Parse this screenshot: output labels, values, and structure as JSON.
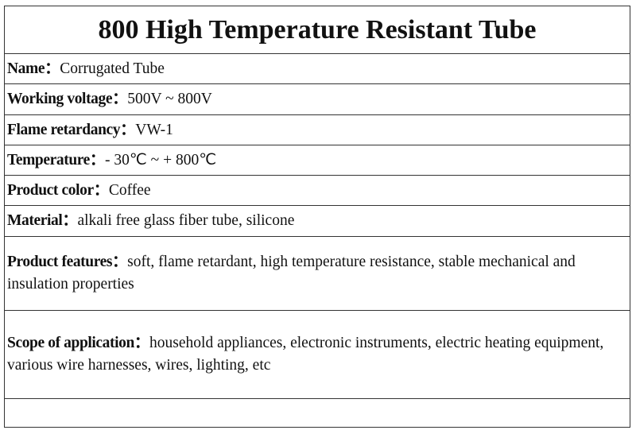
{
  "title": "800 High Temperature Resistant Tube",
  "rows": [
    {
      "label": "Name：",
      "value": "Corrugated Tube"
    },
    {
      "label": "Working voltage：",
      "value": "500V ~ 800V"
    },
    {
      "label": "Flame retardancy：",
      "value": "VW-1"
    },
    {
      "label": "Temperature：",
      "value": "- 30℃ ~ + 800℃"
    },
    {
      "label": "Product color：",
      "value": "Coffee"
    },
    {
      "label": "Material：",
      "value": "alkali free glass fiber tube, silicone"
    },
    {
      "label": "Product features：",
      "value": "soft, flame retardant, high temperature resistance, stable mechanical and insulation properties"
    },
    {
      "label": "Scope of application：",
      "value": "household appliances, electronic instruments, electric heating equipment, various wire harnesses, wires, lighting, etc"
    }
  ]
}
